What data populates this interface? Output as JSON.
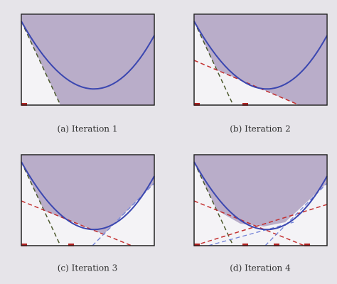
{
  "panels": [
    {
      "caption": "(a) Iteration 1"
    },
    {
      "caption": "(b) Iteration 2"
    },
    {
      "caption": "(c) Iteration 3"
    },
    {
      "caption": "(d) Iteration 4"
    }
  ]
}
